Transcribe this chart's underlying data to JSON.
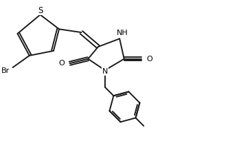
{
  "background_color": "#ffffff",
  "bond_color": "#1a1a1a",
  "line_width": 1.4,
  "font_size": 8.0,
  "fig_width": 3.51,
  "fig_height": 2.08,
  "dpi": 100,
  "xlim": [
    0.0,
    9.5
  ],
  "ylim": [
    0.8,
    6.2
  ]
}
